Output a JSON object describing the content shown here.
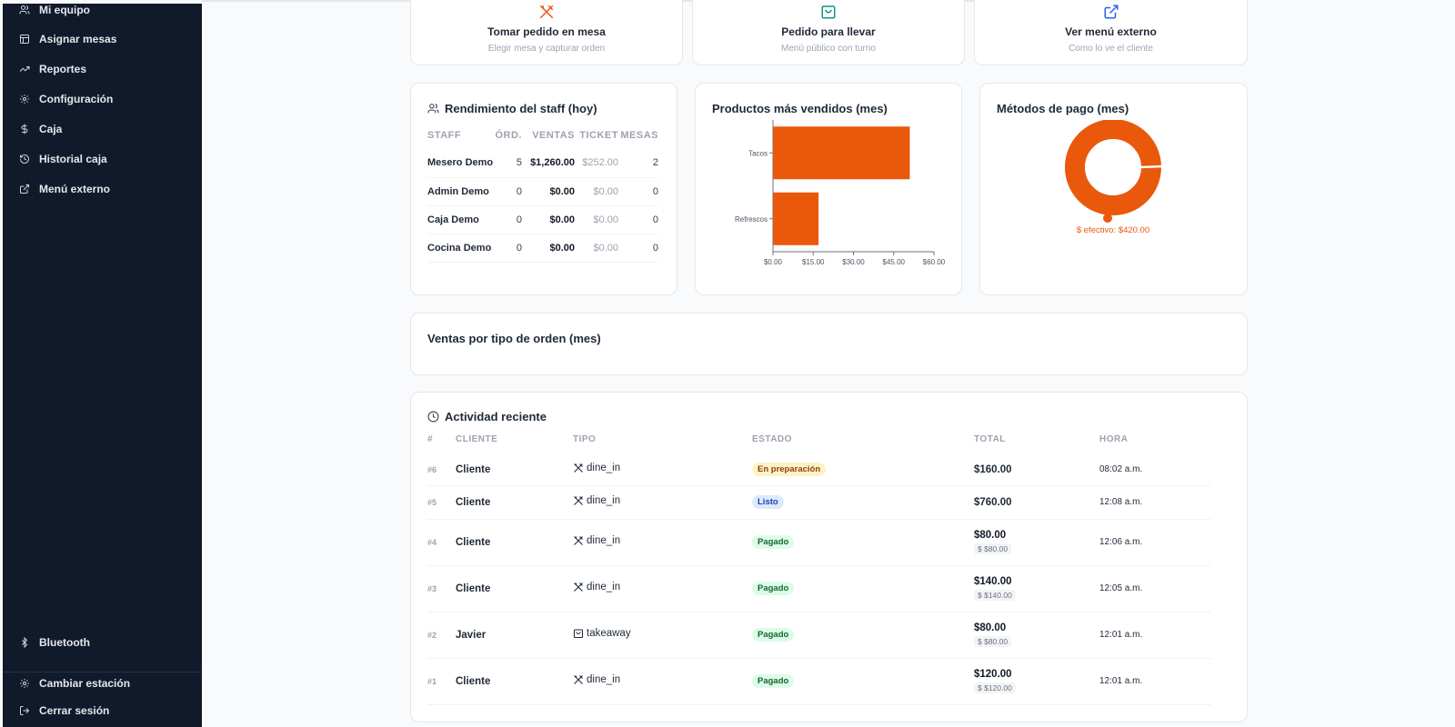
{
  "sidebar": {
    "items": [
      {
        "label": "Mi equipo",
        "icon": "users-icon"
      },
      {
        "label": "Asignar mesas",
        "icon": "table-icon"
      },
      {
        "label": "Reportes",
        "icon": "trending-up-icon"
      },
      {
        "label": "Configuración",
        "icon": "gear-icon"
      },
      {
        "label": "Caja",
        "icon": "dollar-icon"
      },
      {
        "label": "Historial caja",
        "icon": "history-icon"
      },
      {
        "label": "Menú externo",
        "icon": "external-link-icon"
      }
    ],
    "bluetooth": "Bluetooth",
    "cambiar_estacion": "Cambiar estación",
    "cerrar_sesion": "Cerrar sesión"
  },
  "quick_actions": [
    {
      "title": "Tomar pedido en mesa",
      "subtitle": "Elegir mesa y capturar orden",
      "icon": "utensils-icon",
      "color": "#ea580c"
    },
    {
      "title": "Pedido para llevar",
      "subtitle": "Menú público con turno",
      "icon": "shopping-bag-icon",
      "color": "#0d9488"
    },
    {
      "title": "Ver menú externo",
      "subtitle": "Como lo ve el cliente",
      "icon": "external-link-icon",
      "color": "#2563eb"
    }
  ],
  "staff": {
    "title": "Rendimiento del staff (hoy)",
    "headers": [
      "STAFF",
      "ÓRD.",
      "VENTAS",
      "TICKET",
      "MESAS"
    ],
    "rows": [
      [
        "Mesero Demo",
        "5",
        "$1,260.00",
        "$252.00",
        "2"
      ],
      [
        "Admin Demo",
        "0",
        "$0.00",
        "$0.00",
        "0"
      ],
      [
        "Caja Demo",
        "0",
        "$0.00",
        "$0.00",
        "0"
      ],
      [
        "Cocina Demo",
        "0",
        "$0.00",
        "$0.00",
        "0"
      ]
    ]
  },
  "top_products": {
    "title": "Productos más vendidos (mes)"
  },
  "payment_methods": {
    "title": "Métodos de pago (mes)"
  },
  "order_types": {
    "title": "Ventas por tipo de orden (mes)"
  },
  "chart_data": [
    {
      "type": "bar",
      "orientation": "horizontal",
      "title": "Productos más vendidos (mes)",
      "categories": [
        "Tacos",
        "Refrescos"
      ],
      "values": [
        51,
        17
      ],
      "xlim": [
        0,
        60
      ],
      "xticks": [
        "$0.00",
        "$15.00",
        "$30.00",
        "$45.00",
        "$60.00"
      ],
      "color": "#ea580c",
      "grid": false
    },
    {
      "type": "pie",
      "variant": "donut",
      "title": "Métodos de pago (mes)",
      "labels": [
        "efectivo"
      ],
      "values": [
        420
      ],
      "legend_text": "efectivo: $420.00",
      "legend_placement": "bottom",
      "color": "#ea580c"
    }
  ],
  "activity": {
    "title": "Actividad reciente",
    "headers": [
      "#",
      "CLIENTE",
      "TIPO",
      "ESTADO",
      "TOTAL",
      "HORA"
    ],
    "rows": [
      {
        "num": "#6",
        "cliente": "Cliente",
        "tipo": "dine_in",
        "tipo_icon": "utensils-icon",
        "estado": "En preparación",
        "estado_kind": "prep",
        "total": "$160.00",
        "sub": "",
        "hora": "08:02 a.m."
      },
      {
        "num": "#5",
        "cliente": "Cliente",
        "tipo": "dine_in",
        "tipo_icon": "utensils-icon",
        "estado": "Listo",
        "estado_kind": "listo",
        "total": "$760.00",
        "sub": "",
        "hora": "12:08 a.m."
      },
      {
        "num": "#4",
        "cliente": "Cliente",
        "tipo": "dine_in",
        "tipo_icon": "utensils-icon",
        "estado": "Pagado",
        "estado_kind": "pagado",
        "total": "$80.00",
        "sub": "$ $80.00",
        "hora": "12:06 a.m."
      },
      {
        "num": "#3",
        "cliente": "Cliente",
        "tipo": "dine_in",
        "tipo_icon": "utensils-icon",
        "estado": "Pagado",
        "estado_kind": "pagado",
        "total": "$140.00",
        "sub": "$ $140.00",
        "hora": "12:05 a.m."
      },
      {
        "num": "#2",
        "cliente": "Javier",
        "tipo": "takeaway",
        "tipo_icon": "shopping-bag-icon",
        "estado": "Pagado",
        "estado_kind": "pagado",
        "total": "$80.00",
        "sub": "$ $80.00",
        "hora": "12:01 a.m."
      },
      {
        "num": "#1",
        "cliente": "Cliente",
        "tipo": "dine_in",
        "tipo_icon": "utensils-icon",
        "estado": "Pagado",
        "estado_kind": "pagado",
        "total": "$120.00",
        "sub": "$ $120.00",
        "hora": "12:01 a.m."
      }
    ]
  }
}
